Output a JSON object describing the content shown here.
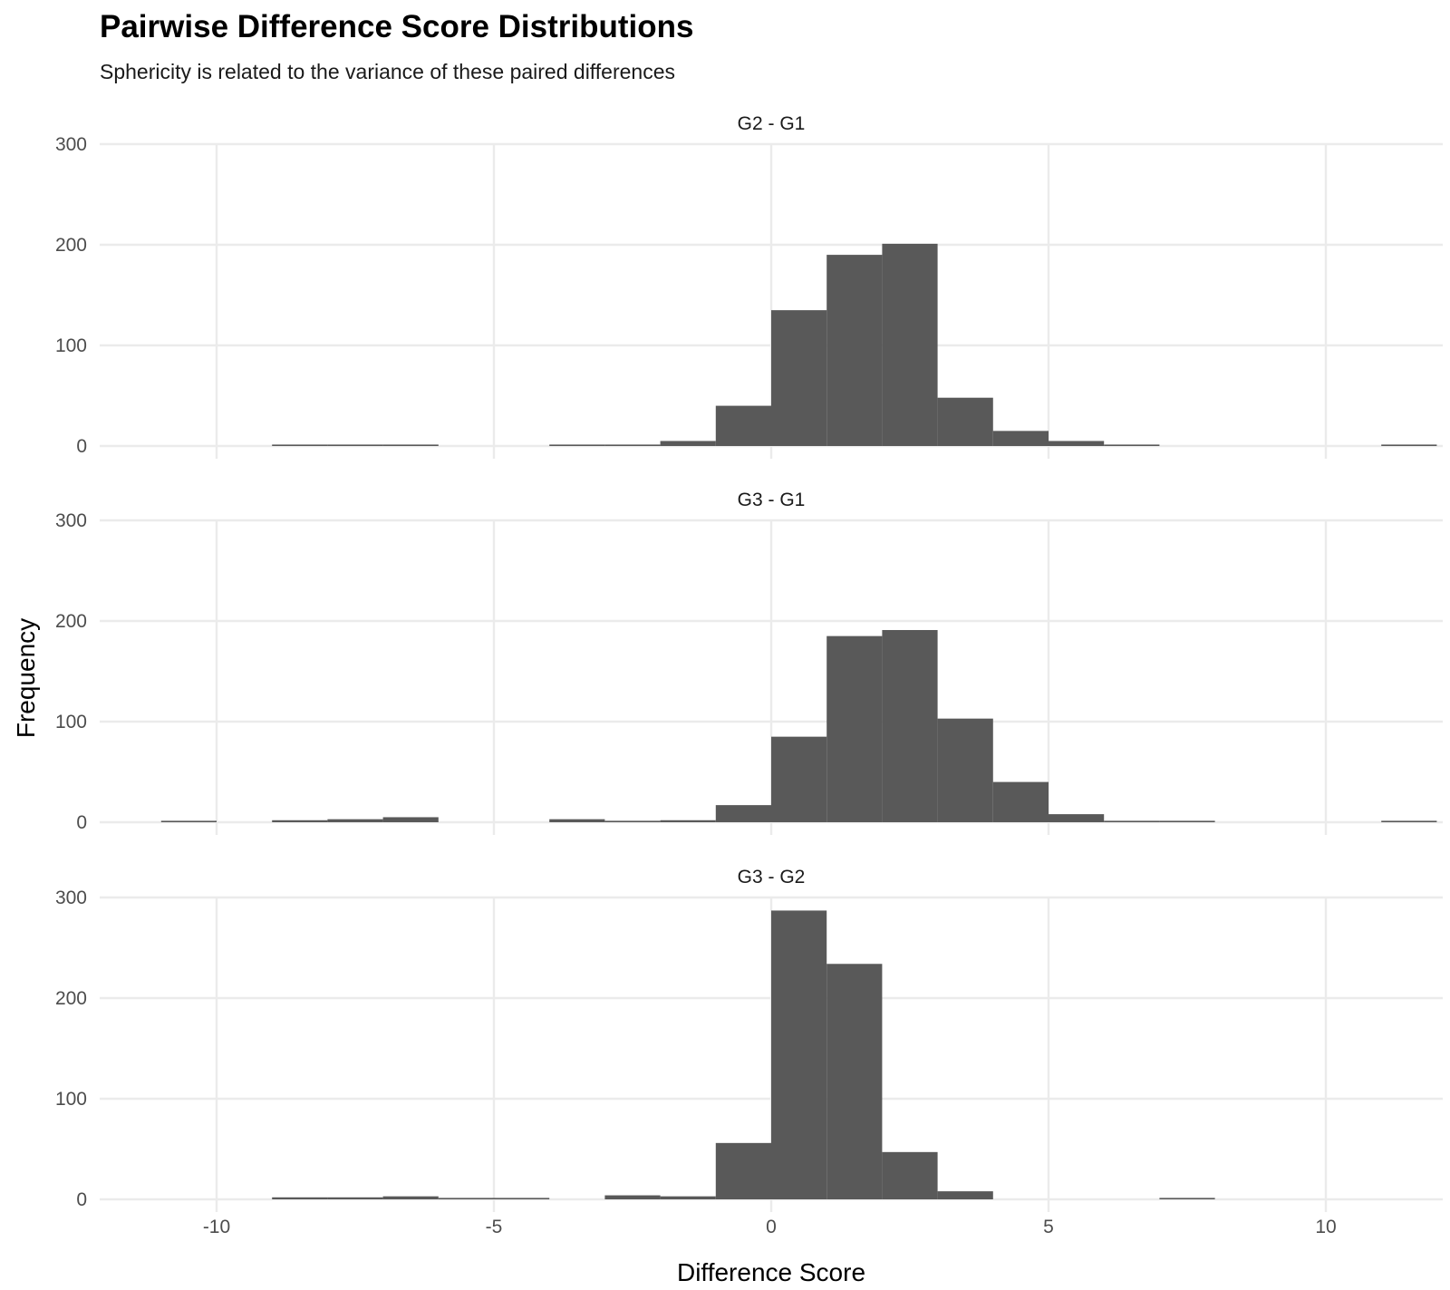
{
  "chart_data": {
    "type": "bar",
    "title": "Pairwise Difference Score Distributions",
    "subtitle": "Sphericity is related to the variance of these paired differences",
    "xlabel": "Difference Score",
    "ylabel": "Frequency",
    "xlim": [
      -12,
      12
    ],
    "ylim": [
      0,
      300
    ],
    "x_ticks": [
      -10,
      -5,
      0,
      5,
      10
    ],
    "y_ticks": [
      0,
      100,
      200,
      300
    ],
    "bin_width": 1,
    "bar_color": "#595959",
    "grid": true,
    "panels": [
      {
        "label": "G2 - G1",
        "bins": [
          {
            "start": -9,
            "count": 1
          },
          {
            "start": -8,
            "count": 1
          },
          {
            "start": -7,
            "count": 1
          },
          {
            "start": -6,
            "count": 0
          },
          {
            "start": -5,
            "count": 0
          },
          {
            "start": -4,
            "count": 1
          },
          {
            "start": -3,
            "count": 1
          },
          {
            "start": -2,
            "count": 5
          },
          {
            "start": -1,
            "count": 40
          },
          {
            "start": 0,
            "count": 135
          },
          {
            "start": 1,
            "count": 190
          },
          {
            "start": 2,
            "count": 201
          },
          {
            "start": 3,
            "count": 48
          },
          {
            "start": 4,
            "count": 15
          },
          {
            "start": 5,
            "count": 5
          },
          {
            "start": 6,
            "count": 1
          },
          {
            "start": 11,
            "count": 1
          }
        ]
      },
      {
        "label": "G3 - G1",
        "bins": [
          {
            "start": -11,
            "count": 1
          },
          {
            "start": -9,
            "count": 2
          },
          {
            "start": -8,
            "count": 3
          },
          {
            "start": -7,
            "count": 5
          },
          {
            "start": -6,
            "count": 0
          },
          {
            "start": -5,
            "count": 0
          },
          {
            "start": -4,
            "count": 3
          },
          {
            "start": -3,
            "count": 1
          },
          {
            "start": -2,
            "count": 2
          },
          {
            "start": -1,
            "count": 17
          },
          {
            "start": 0,
            "count": 85
          },
          {
            "start": 1,
            "count": 185
          },
          {
            "start": 2,
            "count": 191
          },
          {
            "start": 3,
            "count": 103
          },
          {
            "start": 4,
            "count": 40
          },
          {
            "start": 5,
            "count": 8
          },
          {
            "start": 6,
            "count": 1
          },
          {
            "start": 7,
            "count": 1
          },
          {
            "start": 11,
            "count": 1
          }
        ]
      },
      {
        "label": "G3 - G2",
        "bins": [
          {
            "start": -9,
            "count": 2
          },
          {
            "start": -8,
            "count": 2
          },
          {
            "start": -7,
            "count": 3
          },
          {
            "start": -6,
            "count": 1
          },
          {
            "start": -5,
            "count": 1
          },
          {
            "start": -3,
            "count": 4
          },
          {
            "start": -2,
            "count": 3
          },
          {
            "start": -1,
            "count": 56
          },
          {
            "start": 0,
            "count": 287
          },
          {
            "start": 1,
            "count": 234
          },
          {
            "start": 2,
            "count": 47
          },
          {
            "start": 3,
            "count": 8
          },
          {
            "start": 4,
            "count": 0
          },
          {
            "start": 7,
            "count": 1
          }
        ]
      }
    ]
  }
}
